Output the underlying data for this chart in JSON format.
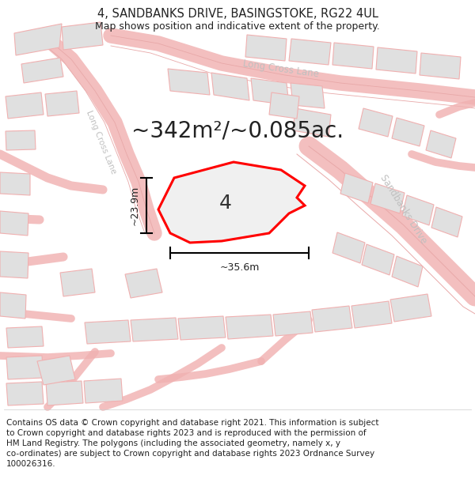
{
  "title": "4, SANDBANKS DRIVE, BASINGSTOKE, RG22 4UL",
  "subtitle": "Map shows position and indicative extent of the property.",
  "area_text": "~342m²/~0.085ac.",
  "plot_number": "4",
  "width_label": "~35.6m",
  "height_label": "~23.9m",
  "background_color": "#ffffff",
  "map_bg_color": "#ffffff",
  "plot_fill": "#e8e8e8",
  "plot_edge_color": "#ff0000",
  "plot_surround_fill": "#e0e0e0",
  "plot_surround_edge": "#f0b0b0",
  "road_line_color": "#f0b0b0",
  "road_label_color": "#c0c0c0",
  "footer_text_lines": [
    "Contains OS data © Crown copyright and database right 2021. This information is subject",
    "to Crown copyright and database rights 2023 and is reproduced with the permission of",
    "HM Land Registry. The polygons (including the associated geometry, namely x, y",
    "co-ordinates) are subject to Crown copyright and database rights 2023 Ordnance Survey",
    "100026316."
  ],
  "title_fontsize": 10.5,
  "subtitle_fontsize": 9,
  "area_fontsize": 20,
  "plot_number_fontsize": 18,
  "footer_fontsize": 7.5,
  "road_label_fontsize": 8.5,
  "measure_label_fontsize": 9
}
